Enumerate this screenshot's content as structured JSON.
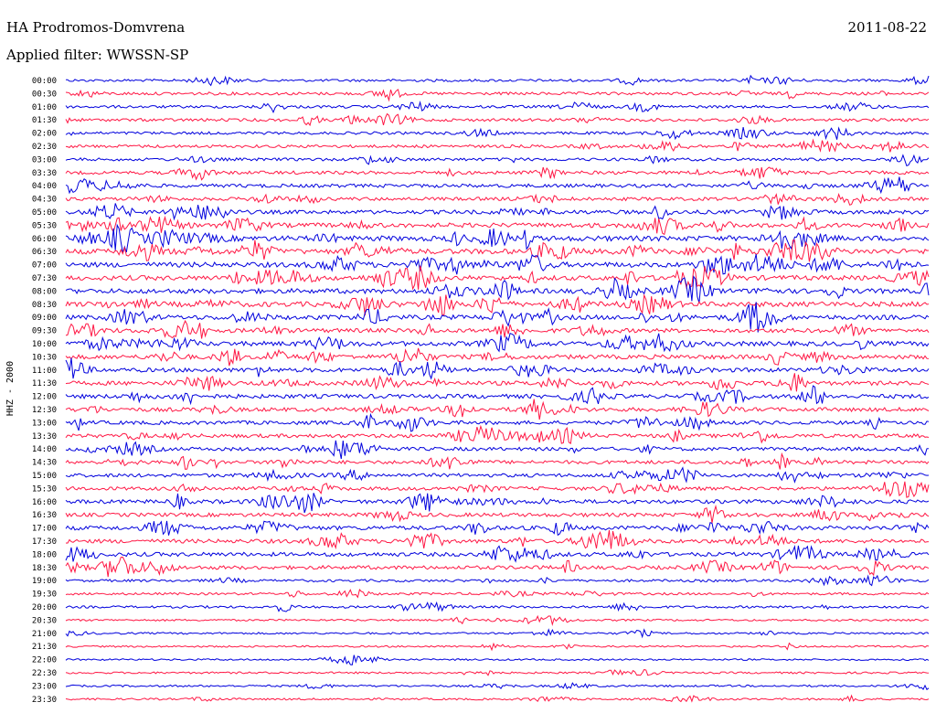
{
  "header": {
    "station": "HA Prodromos-Domvrena",
    "date": "2011-08-22",
    "filter": "Applied filter: WWSSN-SP"
  },
  "chart_data": {
    "type": "line",
    "title": "HA Prodromos-Domvrena",
    "ylabel": "HHZ - 2000",
    "tick_labels": [
      "00:00",
      "00:30",
      "01:00",
      "01:30",
      "02:00",
      "02:30",
      "03:00",
      "03:30",
      "04:00",
      "04:30",
      "05:00",
      "05:30",
      "06:00",
      "06:30",
      "07:00",
      "07:30",
      "08:00",
      "08:30",
      "09:00",
      "09:30",
      "10:00",
      "10:30",
      "11:00",
      "11:30",
      "12:00",
      "12:30",
      "13:00",
      "13:30",
      "14:00",
      "14:30",
      "15:00",
      "15:30",
      "16:00",
      "16:30",
      "17:00",
      "17:30",
      "18:00",
      "18:30",
      "19:00",
      "19:30",
      "20:00",
      "20:30",
      "21:00",
      "21:30",
      "22:00",
      "22:30",
      "23:00",
      "23:30"
    ],
    "activity": [
      0.35,
      0.45,
      0.4,
      0.45,
      0.4,
      0.45,
      0.45,
      0.55,
      0.6,
      0.55,
      0.7,
      0.85,
      1.0,
      1.0,
      0.95,
      0.9,
      0.9,
      0.95,
      0.85,
      0.75,
      0.85,
      0.8,
      0.75,
      0.75,
      0.75,
      0.7,
      0.65,
      0.65,
      0.6,
      0.6,
      0.6,
      0.6,
      0.7,
      0.65,
      0.75,
      0.7,
      0.7,
      0.65,
      0.35,
      0.3,
      0.3,
      0.2,
      0.2,
      0.15,
      0.15,
      0.2,
      0.2,
      0.2
    ],
    "colors": [
      "#0000dd",
      "#ff1744"
    ],
    "grid": false
  }
}
